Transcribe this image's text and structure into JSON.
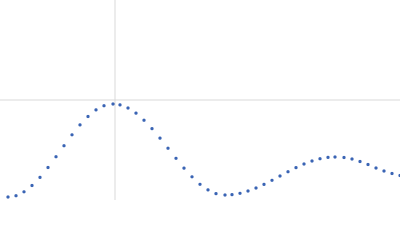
{
  "chart_data": {
    "type": "scatter",
    "color": "#3a64b4",
    "grid": true,
    "xlim": [
      0,
      400
    ],
    "ylim": [
      0,
      200
    ],
    "xticks": [
      115
    ],
    "yticks": [
      100
    ],
    "x": [
      8,
      16,
      24,
      32,
      40,
      48,
      56,
      64,
      72,
      80,
      88,
      96,
      104,
      113,
      120,
      128,
      136,
      144,
      152,
      160,
      168,
      176,
      184,
      192,
      200,
      208,
      216,
      225,
      232,
      240,
      248,
      256,
      264,
      272,
      280,
      288,
      296,
      304,
      312,
      320,
      328,
      335,
      344,
      352,
      360,
      368,
      376,
      384,
      392,
      400
    ],
    "values": [
      3,
      4.3,
      8.2,
      14.5,
      22.6,
      32.5,
      43.3,
      54.3,
      65.2,
      75.1,
      83.5,
      90.1,
      94.3,
      96,
      95.1,
      92,
      86.9,
      79.8,
      71.4,
      61.9,
      51.8,
      41.7,
      31.9,
      23.2,
      15.7,
      10.1,
      6.4,
      5,
      5.4,
      6.7,
      9,
      12,
      15.6,
      19.7,
      24,
      28.3,
      32.4,
      36,
      39,
      41.3,
      42.6,
      43,
      42.5,
      41,
      38.5,
      35.5,
      32,
      29,
      26.5,
      24.5
    ]
  }
}
